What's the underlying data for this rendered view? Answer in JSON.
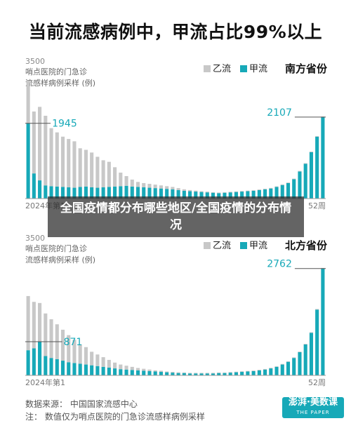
{
  "title": "当前流感病例中，甲流占比99%以上",
  "overlay_text": "全国疫情都分布哪些地区/全国疫情的分布情况",
  "footer": {
    "source": "数据来源： 中国国家流感中心",
    "note": "注： 数值仅为哨点医院的门急诊流感样病例采样"
  },
  "logo": {
    "name": "澎湃·美数课",
    "sub": "THE PAPER"
  },
  "colors": {
    "flu_a": "#17a9b8",
    "flu_b": "#c8c8c8",
    "accent_line": "#555555"
  },
  "chart_data": [
    {
      "type": "bar",
      "stacked": true,
      "region": "南方省份",
      "y_max_label": "3500",
      "ylabel": "哨点医院的门急诊\n流感样病例采样 (例)",
      "x_start_label": "2024年第1",
      "x_end_label": "52周",
      "ylim": [
        0,
        3500
      ],
      "annotations": [
        {
          "label": "1945",
          "x": 1,
          "y": 1945
        },
        {
          "label": "2107",
          "x": 52,
          "y": 2107
        }
      ],
      "series": [
        {
          "name": "甲流",
          "color": "#17a9b8",
          "values": [
            1945,
            650,
            470,
            340,
            320,
            310,
            300,
            290,
            280,
            300,
            310,
            290,
            280,
            290,
            300,
            310,
            320,
            330,
            310,
            300,
            290,
            280,
            270,
            260,
            250,
            240,
            220,
            200,
            190,
            180,
            170,
            160,
            150,
            140,
            150,
            160,
            170,
            180,
            190,
            200,
            220,
            240,
            260,
            300,
            350,
            400,
            500,
            700,
            900,
            1200,
            1600,
            2107
          ]
        },
        {
          "name": "乙流",
          "color": "#c8c8c8",
          "values": [
            1100,
            1600,
            1900,
            1800,
            1500,
            1400,
            1300,
            1250,
            1200,
            1000,
            950,
            900,
            800,
            700,
            650,
            500,
            350,
            250,
            180,
            130,
            110,
            100,
            90,
            80,
            70,
            60,
            50,
            40,
            30,
            25,
            20,
            20,
            15,
            15,
            15,
            15,
            15,
            15,
            15,
            15,
            15,
            15,
            15,
            15,
            15,
            15,
            15,
            15,
            15,
            15,
            15,
            15
          ]
        }
      ]
    },
    {
      "type": "bar",
      "stacked": true,
      "region": "北方省份",
      "y_max_label": "3500",
      "ylabel": "哨点医院的门急诊\n流感样病例采样 (例)",
      "x_start_label": "2024年第1",
      "x_end_label": "52周",
      "ylim": [
        0,
        3500
      ],
      "annotations": [
        {
          "label": "871",
          "x": 3,
          "y": 871
        },
        {
          "label": "2762",
          "x": 52,
          "y": 2762
        }
      ],
      "series": [
        {
          "name": "甲流",
          "color": "#17a9b8",
          "values": [
            650,
            700,
            871,
            500,
            450,
            420,
            380,
            340,
            320,
            300,
            280,
            260,
            240,
            220,
            200,
            180,
            160,
            150,
            140,
            130,
            120,
            110,
            100,
            90,
            80,
            70,
            60,
            60,
            50,
            50,
            50,
            50,
            50,
            60,
            60,
            70,
            80,
            90,
            100,
            110,
            130,
            150,
            180,
            220,
            280,
            350,
            450,
            600,
            800,
            1100,
            1700,
            2762
          ]
        },
        {
          "name": "乙流",
          "color": "#c8c8c8",
          "values": [
            1400,
            1200,
            1000,
            1100,
            1000,
            900,
            800,
            700,
            600,
            500,
            450,
            350,
            300,
            250,
            200,
            150,
            120,
            100,
            80,
            60,
            50,
            40,
            30,
            30,
            20,
            20,
            20,
            15,
            15,
            15,
            15,
            15,
            15,
            15,
            15,
            15,
            15,
            15,
            15,
            15,
            15,
            15,
            15,
            15,
            15,
            15,
            15,
            15,
            15,
            15,
            15,
            15
          ]
        }
      ]
    }
  ]
}
